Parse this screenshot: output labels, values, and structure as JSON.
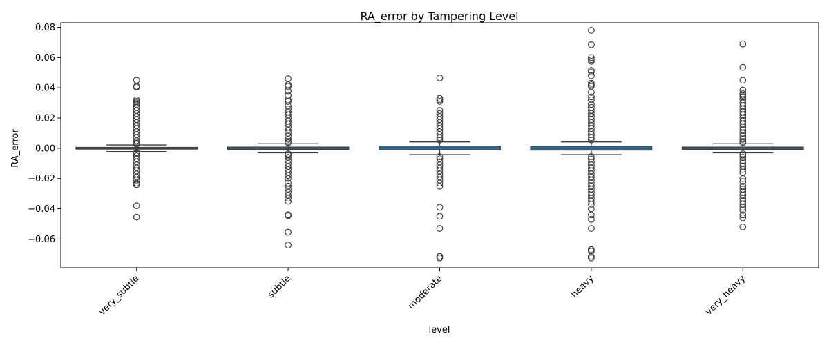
{
  "chart_data": {
    "type": "box",
    "title": "RA_error by Tampering Level",
    "xlabel": "level",
    "ylabel": "RA_error",
    "categories": [
      "very_subtle",
      "subtle",
      "moderate",
      "heavy",
      "very_heavy"
    ],
    "ylim": [
      -0.079,
      0.083
    ],
    "yticks": [
      -0.06,
      -0.04,
      -0.02,
      0.0,
      0.02,
      0.04,
      0.06,
      0.08
    ],
    "ytick_labels": [
      "−0.06",
      "−0.04",
      "−0.02",
      "0.00",
      "0.02",
      "0.04",
      "0.06",
      "0.08"
    ],
    "box_color": "#1f77b4",
    "line_color": "#3f3f3f",
    "boxes": [
      {
        "category": "very_subtle",
        "q1": -0.0005,
        "median": 0.0,
        "q3": 0.0006,
        "whisker_low": -0.0022,
        "whisker_high": 0.0022,
        "outliers": [
          0.045,
          0.041,
          0.0405,
          0.032,
          0.031,
          0.03,
          0.029,
          0.027,
          0.025,
          0.023,
          0.021,
          0.019,
          0.017,
          0.015,
          0.013,
          0.011,
          0.009,
          0.007,
          0.005,
          0.0035,
          0.0028,
          -0.0028,
          -0.0035,
          -0.005,
          -0.007,
          -0.009,
          -0.011,
          -0.013,
          -0.015,
          -0.017,
          -0.019,
          -0.021,
          -0.023,
          -0.024,
          -0.038,
          -0.0455
        ]
      },
      {
        "category": "subtle",
        "q1": -0.0008,
        "median": 0.0,
        "q3": 0.0008,
        "whisker_low": -0.003,
        "whisker_high": 0.003,
        "outliers": [
          0.046,
          0.042,
          0.041,
          0.038,
          0.035,
          0.032,
          0.031,
          0.028,
          0.026,
          0.024,
          0.022,
          0.02,
          0.018,
          0.016,
          0.014,
          0.012,
          0.01,
          0.008,
          0.006,
          0.0045,
          0.0037,
          -0.0037,
          -0.0045,
          -0.006,
          -0.008,
          -0.01,
          -0.012,
          -0.014,
          -0.016,
          -0.018,
          -0.02,
          -0.023,
          -0.025,
          -0.027,
          -0.029,
          -0.031,
          -0.033,
          -0.035,
          -0.044,
          -0.0445,
          -0.0555,
          -0.064
        ]
      },
      {
        "category": "moderate",
        "q1": -0.001,
        "median": 0.0003,
        "q3": 0.0015,
        "whisker_low": -0.0042,
        "whisker_high": 0.0042,
        "outliers": [
          0.0465,
          0.033,
          0.032,
          0.031,
          0.025,
          0.023,
          0.021,
          0.019,
          0.017,
          0.015,
          0.013,
          0.011,
          0.009,
          0.007,
          0.0055,
          -0.0055,
          -0.007,
          -0.009,
          -0.011,
          -0.013,
          -0.015,
          -0.017,
          -0.019,
          -0.021,
          -0.023,
          -0.025,
          -0.039,
          -0.045,
          -0.053,
          -0.0715,
          -0.0725
        ]
      },
      {
        "category": "heavy",
        "q1": -0.0012,
        "median": 0.0,
        "q3": 0.0013,
        "whisker_low": -0.0042,
        "whisker_high": 0.0042,
        "outliers": [
          0.078,
          0.0685,
          0.06,
          0.0585,
          0.0575,
          0.0515,
          0.0505,
          0.048,
          0.043,
          0.042,
          0.041,
          0.037,
          0.034,
          0.032,
          0.029,
          0.027,
          0.025,
          0.023,
          0.021,
          0.019,
          0.017,
          0.015,
          0.013,
          0.011,
          0.009,
          0.007,
          0.0055,
          -0.0055,
          -0.007,
          -0.009,
          -0.011,
          -0.013,
          -0.015,
          -0.017,
          -0.019,
          -0.021,
          -0.023,
          -0.025,
          -0.027,
          -0.029,
          -0.031,
          -0.033,
          -0.035,
          -0.037,
          -0.04,
          -0.044,
          -0.047,
          -0.053,
          -0.067,
          -0.068,
          -0.0715,
          -0.0725
        ]
      },
      {
        "category": "very_heavy",
        "q1": -0.0008,
        "median": 0.0,
        "q3": 0.0008,
        "whisker_low": -0.003,
        "whisker_high": 0.003,
        "outliers": [
          0.069,
          0.0535,
          0.045,
          0.0385,
          0.036,
          0.035,
          0.034,
          0.032,
          0.03,
          0.028,
          0.026,
          0.024,
          0.022,
          0.02,
          0.018,
          0.016,
          0.014,
          0.012,
          0.01,
          0.008,
          0.006,
          0.0045,
          0.0037,
          -0.0037,
          -0.0045,
          -0.006,
          -0.008,
          -0.01,
          -0.012,
          -0.014,
          -0.016,
          -0.02,
          -0.022,
          -0.025,
          -0.027,
          -0.029,
          -0.031,
          -0.033,
          -0.035,
          -0.037,
          -0.039,
          -0.041,
          -0.044,
          -0.046,
          -0.052
        ]
      }
    ]
  }
}
